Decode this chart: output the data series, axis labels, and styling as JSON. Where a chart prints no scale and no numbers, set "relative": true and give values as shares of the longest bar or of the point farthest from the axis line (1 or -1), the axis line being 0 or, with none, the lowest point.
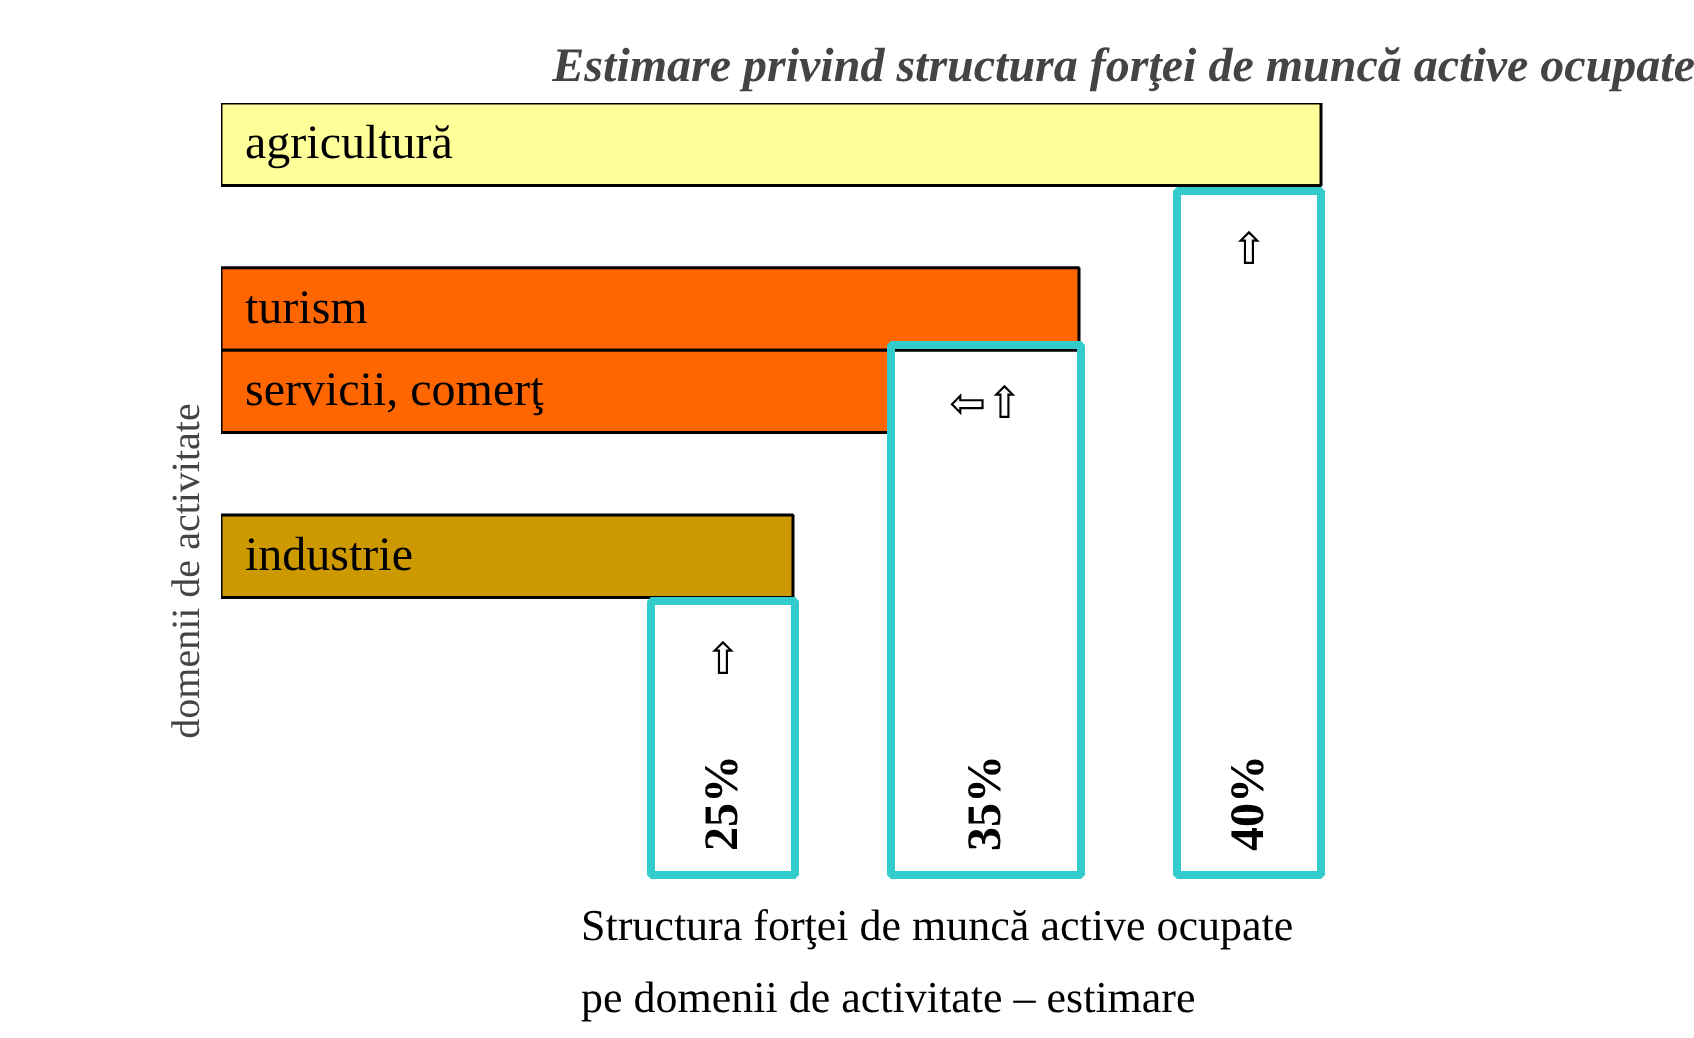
{
  "chart_data": {
    "type": "bar",
    "orientation": "horizontal",
    "relative": true,
    "title": "Estimare privind structura forţei de muncă active ocupate",
    "ylabel": "domenii de activitate",
    "categories": [
      "agricultură",
      null,
      "turism",
      "servicii, comerţ",
      null,
      "industrie"
    ],
    "values": [
      1,
      null,
      0.78,
      0.61,
      null,
      0.52
    ],
    "colors": [
      "#ffff99",
      null,
      "#ff6600",
      "#ff6600",
      null,
      "#cc9900"
    ],
    "annotations": [
      "⇧",
      "25%",
      "⇦⇧",
      "35%",
      "⇧",
      "40%",
      "Structura forţei de muncă active ocupate pe domenii de activitate – estimare"
    ]
  }
}
